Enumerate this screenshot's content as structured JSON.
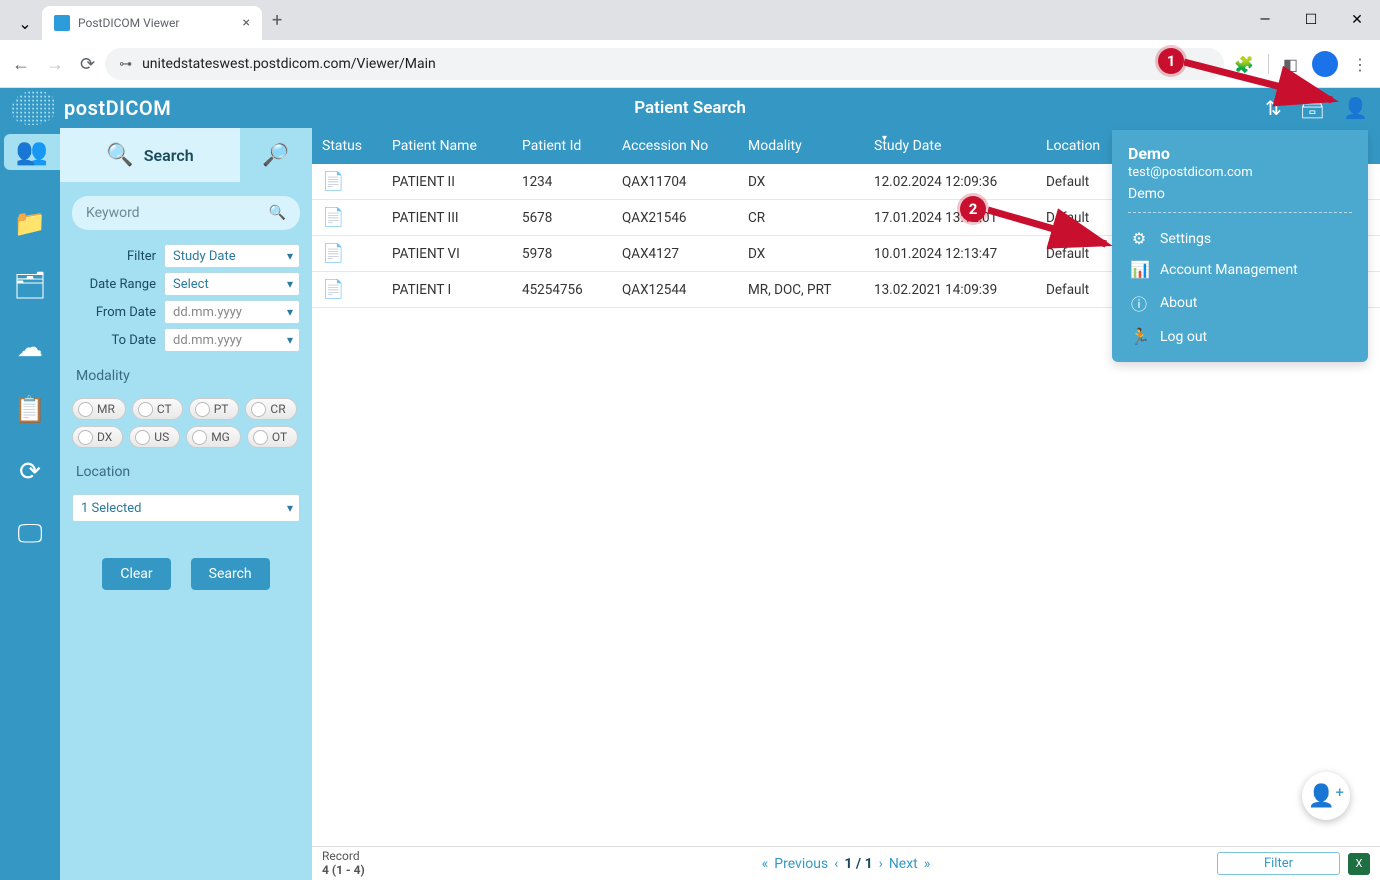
{
  "browser": {
    "tab_title": "PostDICOM Viewer",
    "url": "unitedstateswest.postdicom.com/Viewer/Main"
  },
  "header": {
    "brand": "postDICOM",
    "title": "Patient Search"
  },
  "sidebar": {
    "search_tab": "Search",
    "keyword_placeholder": "Keyword",
    "filter_label": "Filter",
    "date_range_label": "Date Range",
    "from_date_label": "From Date",
    "to_date_label": "To Date",
    "filter_value": "Study Date",
    "date_range_value": "Select",
    "from_date_value": "dd.mm.yyyy",
    "to_date_value": "dd.mm.yyyy",
    "modality_label": "Modality",
    "modalities": [
      "MR",
      "CT",
      "PT",
      "CR",
      "DX",
      "US",
      "MG",
      "OT"
    ],
    "location_label": "Location",
    "location_value": "1 Selected",
    "clear_btn": "Clear",
    "search_btn": "Search"
  },
  "table": {
    "columns": [
      "Status",
      "Patient Name",
      "Patient Id",
      "Accession No",
      "Modality",
      "Study Date",
      "Location"
    ],
    "rows": [
      {
        "name": "PATIENT II",
        "id": "1234",
        "acc": "QAX11704",
        "mod": "DX",
        "date": "12.02.2024 12:09:36",
        "loc": "Default"
      },
      {
        "name": "PATIENT III",
        "id": "5678",
        "acc": "QAX21546",
        "mod": "CR",
        "date": "17.01.2024 13:12:01",
        "loc": "Default"
      },
      {
        "name": "PATIENT VI",
        "id": "5978",
        "acc": "QAX4127",
        "mod": "DX",
        "date": "10.01.2024 12:13:47",
        "loc": "Default"
      },
      {
        "name": "PATIENT I",
        "id": "45254756",
        "acc": "QAX12544",
        "mod": "MR, DOC, PRT",
        "date": "13.02.2021 14:09:39",
        "loc": "Default"
      }
    ]
  },
  "footer": {
    "record_label": "Record",
    "record_value": "4 (1 - 4)",
    "prev": "Previous",
    "page": "1 / 1",
    "next": "Next",
    "filter_btn": "Filter",
    "excel": "X"
  },
  "user_menu": {
    "name": "Demo",
    "email": "test@postdicom.com",
    "org": "Demo",
    "settings": "Settings",
    "account": "Account Management",
    "about": "About",
    "logout": "Log out"
  },
  "callouts": {
    "c1": "1",
    "c2": "2"
  },
  "colors": {
    "primary": "#3598c4",
    "light": "#a4dff2",
    "accent": "#c8102e"
  }
}
